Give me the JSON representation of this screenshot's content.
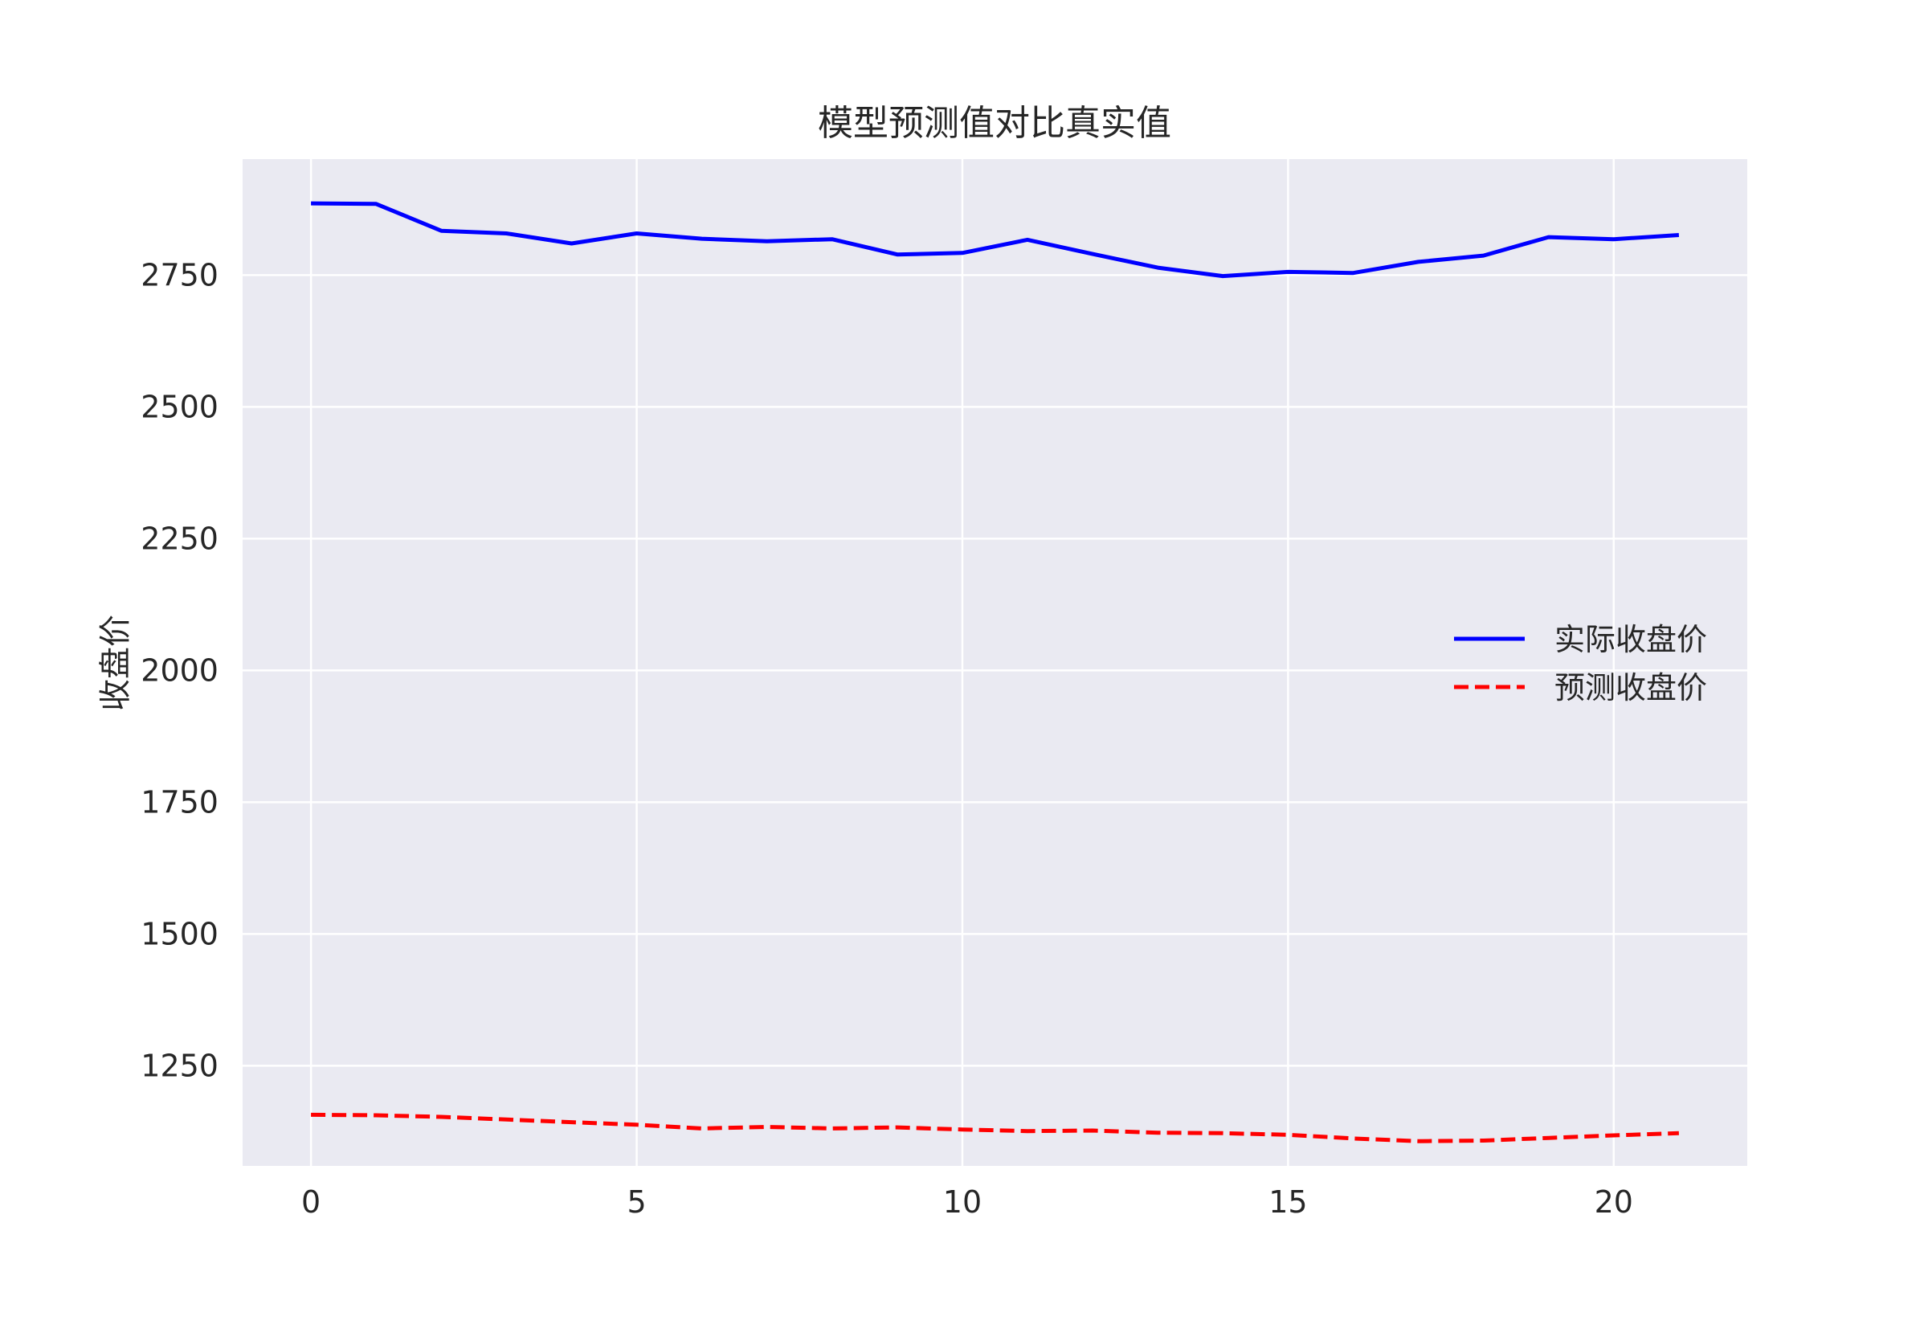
{
  "chart_data": {
    "type": "line",
    "title": "模型预测值对比真实值",
    "xlabel": "",
    "ylabel": "收盘价",
    "x": [
      0,
      1,
      2,
      3,
      4,
      5,
      6,
      7,
      8,
      9,
      10,
      11,
      12,
      13,
      14,
      15,
      16,
      17,
      18,
      19,
      20,
      21
    ],
    "xlim": [
      -1.05,
      22.05
    ],
    "ylim": [
      1060,
      2970
    ],
    "xticks": [
      0,
      5,
      10,
      15,
      20
    ],
    "yticks": [
      1250,
      1500,
      1750,
      2000,
      2250,
      2500,
      2750
    ],
    "grid": true,
    "legend_position": "center-right",
    "series": [
      {
        "name": "实际收盘价",
        "color": "#0000ff",
        "style": "solid",
        "values": [
          2886,
          2885,
          2834,
          2829,
          2810,
          2829,
          2819,
          2814,
          2818,
          2789,
          2792,
          2817,
          2790,
          2764,
          2748,
          2756,
          2754,
          2775,
          2787,
          2822,
          2818,
          2826
        ]
      },
      {
        "name": "预测收盘价",
        "color": "#ff0000",
        "style": "dashed",
        "values": [
          1157,
          1156,
          1153,
          1148,
          1143,
          1138,
          1131,
          1134,
          1131,
          1133,
          1129,
          1126,
          1127,
          1123,
          1122,
          1119,
          1112,
          1107,
          1108,
          1113,
          1118,
          1122
        ]
      }
    ],
    "colors": {
      "plot_background": "#eaeaf2",
      "grid": "#ffffff",
      "text": "#262626"
    }
  }
}
